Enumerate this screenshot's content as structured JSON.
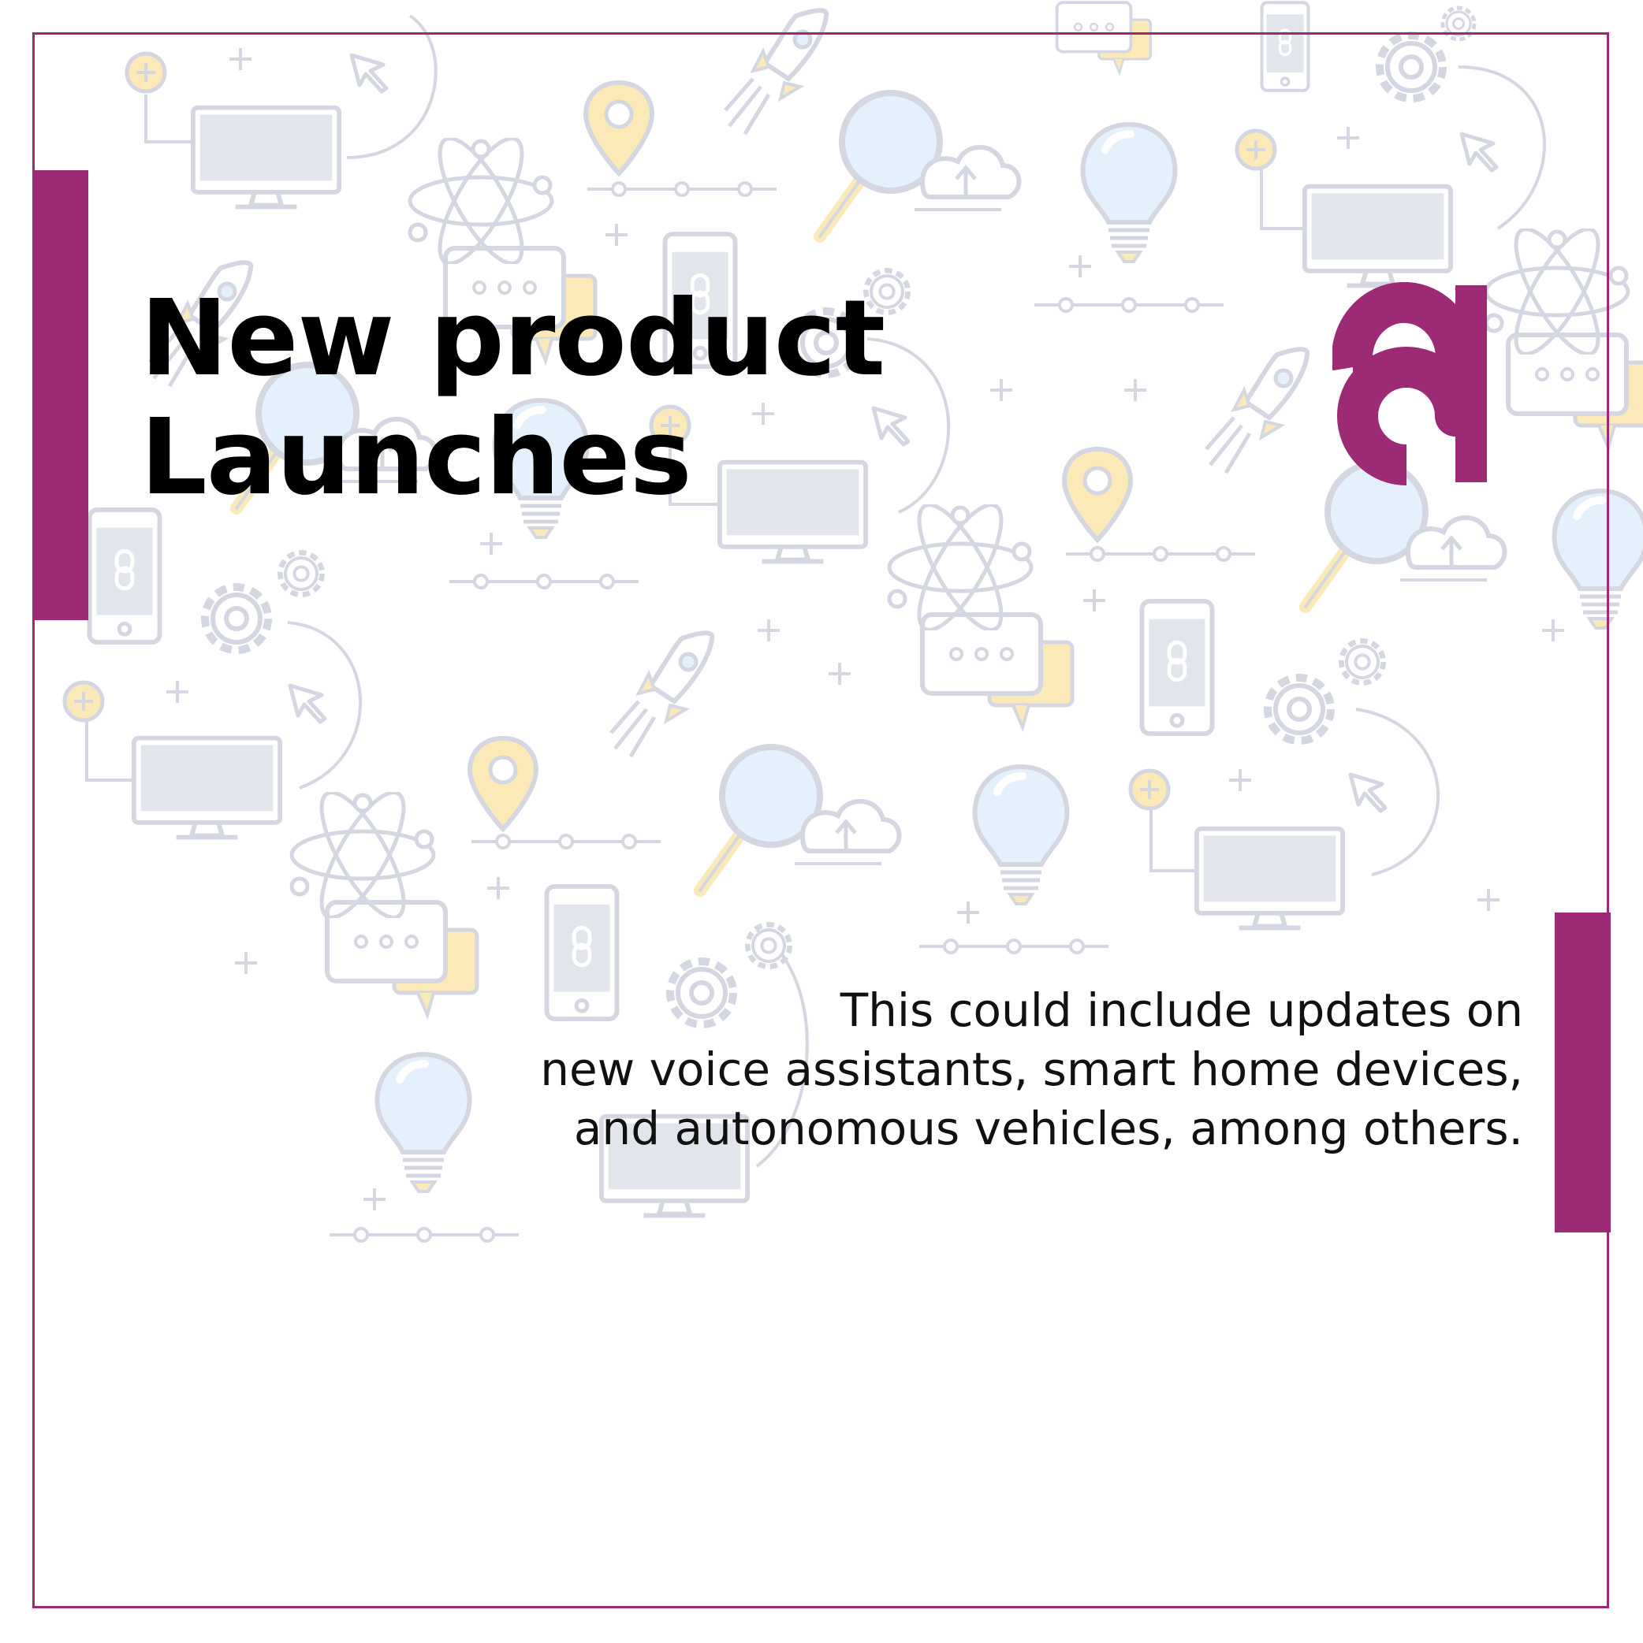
{
  "slide": {
    "headline": [
      "New product",
      "Launches"
    ],
    "body_lines": [
      "This could include updates on",
      "new voice assistants, smart home devices,",
      "and autonomous vehicles, among others."
    ]
  },
  "brand": {
    "logo_icon": "letter-a-logo-icon"
  },
  "background": {
    "pattern_icons": [
      "monitor-icon",
      "smartphone-link-icon",
      "lightbulb-icon",
      "rocket-icon",
      "gear-icon",
      "magnifier-icon",
      "cloud-upload-icon",
      "chat-bubble-icon",
      "atom-icon",
      "location-pin-icon",
      "cursor-icon",
      "plus-icon"
    ]
  },
  "colors": {
    "accent": "#9c2a74",
    "pattern_line": "#d4d7e1",
    "pattern_fill": "#e6e8ef",
    "pattern_warm": "#fbe9b8",
    "pattern_cool": "#e4f0fb",
    "text": "#000000"
  }
}
